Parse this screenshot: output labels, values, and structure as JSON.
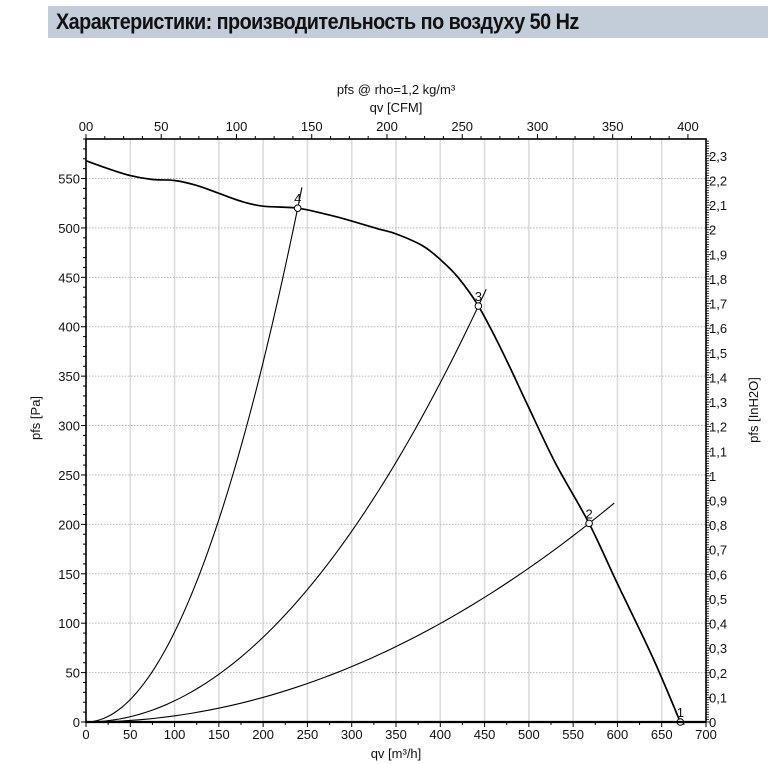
{
  "header": {
    "title": "Характеристики: производительность по воздуху 50 Hz",
    "background": "#c3cdd9"
  },
  "chart_data": {
    "type": "line",
    "title": "Характеристики: производительность по воздуху 50 Hz",
    "subtitle": "pfs @ rho=1,2 kg/m³",
    "xlabel": "qv [m³/h]",
    "x2label": "qv [CFM]",
    "ylabel": "pfs [Pa]",
    "y2label": "pfs [InH2O]",
    "xlim": [
      0,
      700
    ],
    "ylim": [
      0,
      590
    ],
    "x_ticks": [
      0,
      50,
      100,
      150,
      200,
      250,
      300,
      350,
      400,
      450,
      500,
      550,
      600,
      650,
      700
    ],
    "y_ticks": [
      0,
      50,
      100,
      150,
      200,
      250,
      300,
      350,
      400,
      450,
      500,
      550
    ],
    "x2_ticks": [
      0,
      50,
      100,
      150,
      200,
      250,
      300,
      350,
      400
    ],
    "x2_tick_labels": [
      "00",
      "50",
      "100",
      "150",
      "200",
      "250",
      "300",
      "350",
      "400"
    ],
    "y2_ticks": [
      0,
      0.1,
      0.2,
      0.3,
      0.4,
      0.5,
      0.6,
      0.7,
      0.8,
      0.9,
      1,
      1.1,
      1.2,
      1.3,
      1.4,
      1.5,
      1.6,
      1.7,
      1.8,
      1.9,
      2,
      2.1,
      2.2,
      2.3
    ],
    "y2_tick_labels": [
      "0",
      "0,1",
      "0,2",
      "0,3",
      "0,4",
      "0,5",
      "0,6",
      "0,7",
      "0,8",
      "0,9",
      "1",
      "1,1",
      "1,2",
      "1,3",
      "1,4",
      "1,5",
      "1,6",
      "1,7",
      "1,8",
      "1,9",
      "2",
      "2,1",
      "2,2",
      "2,3"
    ],
    "grid": {
      "vertical": "solid",
      "horizontal": "dotted"
    },
    "fan_curve": {
      "name": "pfs",
      "x": [
        0,
        25,
        50,
        75,
        100,
        125,
        150,
        175,
        200,
        239,
        275,
        300,
        330,
        350,
        380,
        400,
        420,
        443,
        470,
        500,
        530,
        568,
        600,
        640,
        671
      ],
      "y": [
        568,
        560,
        553,
        549,
        548,
        543,
        535,
        527,
        522,
        520,
        513,
        507,
        499,
        494,
        482,
        468,
        450,
        421,
        375,
        318,
        262,
        201,
        140,
        65,
        0
      ]
    },
    "system_curves": [
      {
        "id": "4",
        "qv": 239,
        "pfs": 520,
        "ext": 1.02
      },
      {
        "id": "3",
        "qv": 443,
        "pfs": 421,
        "ext": 1.02
      },
      {
        "id": "2",
        "qv": 568,
        "pfs": 201,
        "ext": 1.05
      }
    ],
    "operating_points": [
      {
        "label": "1",
        "qv": 671,
        "pfs": 0
      },
      {
        "label": "2",
        "qv": 568,
        "pfs": 201
      },
      {
        "label": "3",
        "qv": 443,
        "pfs": 421
      },
      {
        "label": "4",
        "qv": 239,
        "pfs": 520
      }
    ]
  }
}
